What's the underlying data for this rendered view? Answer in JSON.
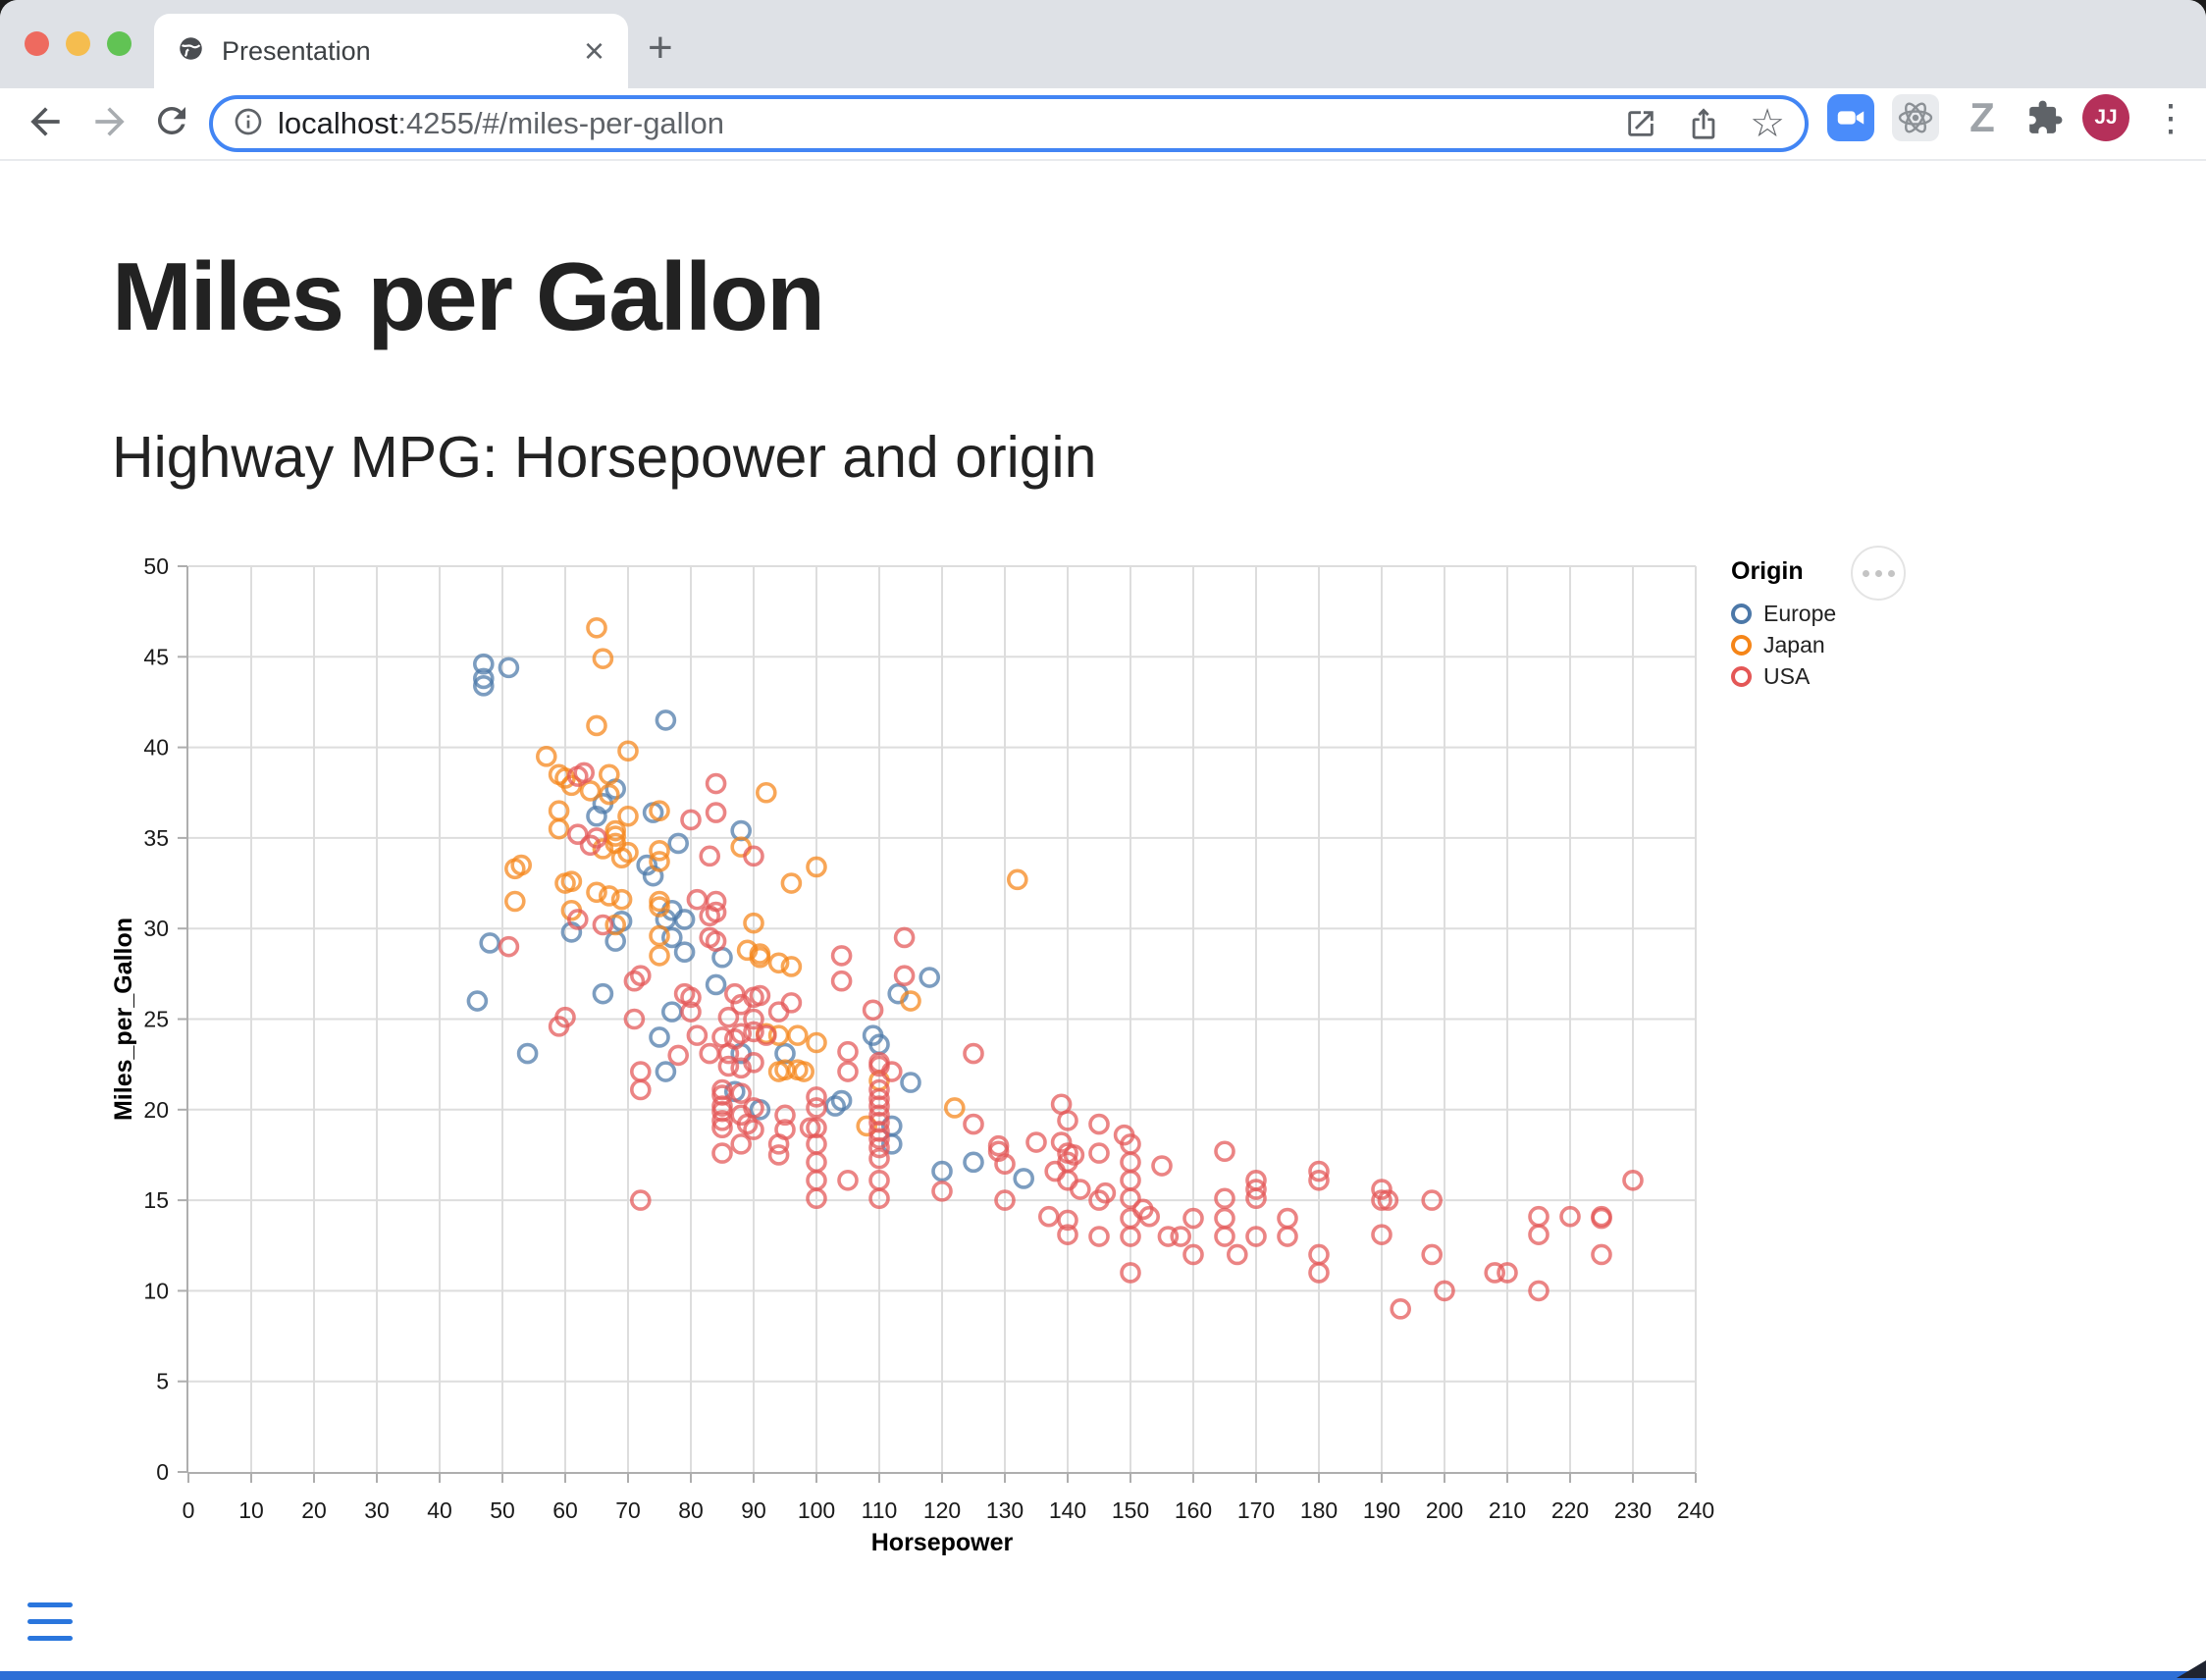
{
  "window": {
    "tab_title": "Presentation",
    "url": {
      "host": "localhost",
      "rest": ":4255/#/miles-per-gallon"
    },
    "avatar_initials": "JJ"
  },
  "icons": {
    "back": "back-arrow",
    "forward": "forward-arrow",
    "reload": "reload",
    "close_tab": "×",
    "new_tab": "+",
    "kebab": "⋮",
    "star": "☆",
    "extension_z": "Z"
  },
  "page": {
    "title": "Miles per Gallon",
    "subtitle": "Highway MPG: Horsepower and origin"
  },
  "chart_data": {
    "type": "scatter",
    "xlabel": "Horsepower",
    "ylabel": "Miles_per_Gallon",
    "xlim": [
      0,
      240
    ],
    "ylim": [
      0,
      50
    ],
    "x_ticks": [
      0,
      10,
      20,
      30,
      40,
      50,
      60,
      70,
      80,
      90,
      100,
      110,
      120,
      130,
      140,
      150,
      160,
      170,
      180,
      190,
      200,
      210,
      220,
      230,
      240
    ],
    "y_ticks": [
      0,
      5,
      10,
      15,
      20,
      25,
      30,
      35,
      40,
      45,
      50
    ],
    "grid": true,
    "point_shape": "open-circle",
    "legend": {
      "title": "Origin",
      "position": "right"
    },
    "series": [
      {
        "name": "Europe",
        "color": "#4c78a8",
        "points": [
          [
            47,
            44.6
          ],
          [
            51,
            44.4
          ],
          [
            47,
            43.8
          ],
          [
            47,
            43.4
          ],
          [
            76,
            41.5
          ],
          [
            68,
            37.7
          ],
          [
            66,
            36.9
          ],
          [
            74,
            36.4
          ],
          [
            65,
            36.2
          ],
          [
            88,
            35.4
          ],
          [
            78,
            34.7
          ],
          [
            73,
            33.5
          ],
          [
            74,
            32.9
          ],
          [
            77,
            31.0
          ],
          [
            76,
            30.5
          ],
          [
            79,
            30.5
          ],
          [
            69,
            30.4
          ],
          [
            61,
            29.8
          ],
          [
            77,
            29.5
          ],
          [
            68,
            29.3
          ],
          [
            48,
            29.2
          ],
          [
            79,
            28.7
          ],
          [
            85,
            28.4
          ],
          [
            118,
            27.3
          ],
          [
            84,
            26.9
          ],
          [
            66,
            26.4
          ],
          [
            113,
            26.4
          ],
          [
            46,
            26.0
          ],
          [
            77,
            25.4
          ],
          [
            109,
            24.1
          ],
          [
            75,
            24.0
          ],
          [
            110,
            23.6
          ],
          [
            54,
            23.1
          ],
          [
            88,
            23.1
          ],
          [
            95,
            23.1
          ],
          [
            76,
            22.1
          ],
          [
            115,
            21.5
          ],
          [
            87,
            21.0
          ],
          [
            104,
            20.5
          ],
          [
            103,
            20.2
          ],
          [
            91,
            20.0
          ],
          [
            112,
            19.1
          ],
          [
            112,
            18.1
          ],
          [
            125,
            17.1
          ],
          [
            120,
            16.6
          ],
          [
            133,
            16.2
          ]
        ]
      },
      {
        "name": "Japan",
        "color": "#f58518",
        "points": [
          [
            65,
            46.6
          ],
          [
            66,
            44.9
          ],
          [
            65,
            41.2
          ],
          [
            70,
            39.8
          ],
          [
            57,
            39.5
          ],
          [
            67,
            38.5
          ],
          [
            59,
            38.5
          ],
          [
            60,
            38.3
          ],
          [
            61,
            37.9
          ],
          [
            64,
            37.6
          ],
          [
            92,
            37.5
          ],
          [
            67,
            37.4
          ],
          [
            59,
            36.5
          ],
          [
            75,
            36.5
          ],
          [
            70,
            36.2
          ],
          [
            59,
            35.5
          ],
          [
            68,
            35.4
          ],
          [
            68,
            35.1
          ],
          [
            68,
            34.7
          ],
          [
            88,
            34.5
          ],
          [
            66,
            34.4
          ],
          [
            75,
            34.3
          ],
          [
            70,
            34.2
          ],
          [
            69,
            33.9
          ],
          [
            75,
            33.7
          ],
          [
            53,
            33.5
          ],
          [
            100,
            33.4
          ],
          [
            52,
            33.3
          ],
          [
            132,
            32.7
          ],
          [
            61,
            32.6
          ],
          [
            60,
            32.5
          ],
          [
            96,
            32.5
          ],
          [
            65,
            32.0
          ],
          [
            67,
            31.8
          ],
          [
            69,
            31.6
          ],
          [
            52,
            31.5
          ],
          [
            75,
            31.5
          ],
          [
            75,
            31.2
          ],
          [
            61,
            31.0
          ],
          [
            90,
            30.3
          ],
          [
            68,
            30.2
          ],
          [
            75,
            29.6
          ],
          [
            89,
            28.8
          ],
          [
            91,
            28.6
          ],
          [
            75,
            28.5
          ],
          [
            91,
            28.4
          ],
          [
            94,
            28.1
          ],
          [
            96,
            27.9
          ],
          [
            115,
            26.0
          ],
          [
            92,
            24.2
          ],
          [
            94,
            24.1
          ],
          [
            97,
            24.1
          ],
          [
            100,
            23.7
          ],
          [
            95,
            22.2
          ],
          [
            97,
            22.2
          ],
          [
            94,
            22.1
          ],
          [
            98,
            22.1
          ],
          [
            110,
            21.6
          ],
          [
            122,
            20.1
          ],
          [
            108,
            19.1
          ]
        ]
      },
      {
        "name": "USA",
        "color": "#e45756",
        "points": [
          [
            63,
            38.6
          ],
          [
            62,
            38.4
          ],
          [
            84,
            38.0
          ],
          [
            84,
            36.4
          ],
          [
            80,
            36.0
          ],
          [
            62,
            35.2
          ],
          [
            65,
            35.0
          ],
          [
            64,
            34.6
          ],
          [
            83,
            34.0
          ],
          [
            90,
            34.0
          ],
          [
            81,
            31.6
          ],
          [
            84,
            31.5
          ],
          [
            84,
            30.9
          ],
          [
            83,
            30.7
          ],
          [
            62,
            30.5
          ],
          [
            66,
            30.2
          ],
          [
            83,
            29.5
          ],
          [
            114,
            29.5
          ],
          [
            84,
            29.3
          ],
          [
            51,
            29.0
          ],
          [
            104,
            28.5
          ],
          [
            114,
            27.4
          ],
          [
            72,
            27.4
          ],
          [
            104,
            27.1
          ],
          [
            71,
            27.1
          ],
          [
            79,
            26.4
          ],
          [
            87,
            26.4
          ],
          [
            91,
            26.3
          ],
          [
            80,
            26.2
          ],
          [
            90,
            26.2
          ],
          [
            96,
            25.9
          ],
          [
            88,
            25.8
          ],
          [
            109,
            25.5
          ],
          [
            80,
            25.4
          ],
          [
            94,
            25.4
          ],
          [
            60,
            25.1
          ],
          [
            86,
            25.1
          ],
          [
            71,
            25.0
          ],
          [
            90,
            25.0
          ],
          [
            59,
            24.6
          ],
          [
            90,
            24.3
          ],
          [
            88,
            24.2
          ],
          [
            81,
            24.1
          ],
          [
            92,
            24.1
          ],
          [
            85,
            24.0
          ],
          [
            87,
            23.9
          ],
          [
            105,
            23.2
          ],
          [
            78,
            23.0
          ],
          [
            83,
            23.1
          ],
          [
            86,
            23.1
          ],
          [
            125,
            23.1
          ],
          [
            90,
            22.6
          ],
          [
            110,
            22.6
          ],
          [
            86,
            22.4
          ],
          [
            110,
            22.4
          ],
          [
            88,
            22.3
          ],
          [
            72,
            22.1
          ],
          [
            105,
            22.1
          ],
          [
            112,
            22.1
          ],
          [
            72,
            21.1
          ],
          [
            85,
            21.1
          ],
          [
            110,
            21.1
          ],
          [
            88,
            20.9
          ],
          [
            85,
            20.8
          ],
          [
            100,
            20.7
          ],
          [
            110,
            20.6
          ],
          [
            139,
            20.3
          ],
          [
            85,
            20.2
          ],
          [
            110,
            20.2
          ],
          [
            100,
            20.1
          ],
          [
            90,
            20.1
          ],
          [
            85,
            19.9
          ],
          [
            88,
            19.7
          ],
          [
            95,
            19.7
          ],
          [
            110,
            19.7
          ],
          [
            85,
            19.4
          ],
          [
            140,
            19.4
          ],
          [
            110,
            19.3
          ],
          [
            89,
            19.2
          ],
          [
            125,
            19.2
          ],
          [
            145,
            19.2
          ],
          [
            85,
            19.0
          ],
          [
            99,
            19.0
          ],
          [
            100,
            19.0
          ],
          [
            90,
            18.9
          ],
          [
            95,
            18.9
          ],
          [
            110,
            18.8
          ],
          [
            149,
            18.6
          ],
          [
            110,
            18.4
          ],
          [
            135,
            18.2
          ],
          [
            139,
            18.2
          ],
          [
            88,
            18.1
          ],
          [
            94,
            18.1
          ],
          [
            100,
            18.1
          ],
          [
            150,
            18.1
          ],
          [
            129,
            18.0
          ],
          [
            110,
            17.9
          ],
          [
            129,
            17.7
          ],
          [
            165,
            17.7
          ],
          [
            85,
            17.6
          ],
          [
            140,
            17.6
          ],
          [
            145,
            17.6
          ],
          [
            94,
            17.5
          ],
          [
            141,
            17.5
          ],
          [
            110,
            17.3
          ],
          [
            100,
            17.1
          ],
          [
            140,
            17.1
          ],
          [
            150,
            17.1
          ],
          [
            130,
            17.0
          ],
          [
            155,
            16.9
          ],
          [
            138,
            16.6
          ],
          [
            180,
            16.6
          ],
          [
            100,
            16.1
          ],
          [
            105,
            16.1
          ],
          [
            110,
            16.1
          ],
          [
            140,
            16.1
          ],
          [
            150,
            16.1
          ],
          [
            170,
            16.1
          ],
          [
            180,
            16.1
          ],
          [
            230,
            16.1
          ],
          [
            142,
            15.6
          ],
          [
            170,
            15.6
          ],
          [
            190,
            15.6
          ],
          [
            120,
            15.5
          ],
          [
            146,
            15.4
          ],
          [
            100,
            15.1
          ],
          [
            110,
            15.1
          ],
          [
            150,
            15.1
          ],
          [
            165,
            15.1
          ],
          [
            170,
            15.1
          ],
          [
            72,
            15.0
          ],
          [
            130,
            15.0
          ],
          [
            145,
            15.0
          ],
          [
            190,
            15.0
          ],
          [
            191,
            15.0
          ],
          [
            198,
            15.0
          ],
          [
            152,
            14.5
          ],
          [
            137,
            14.1
          ],
          [
            153,
            14.1
          ],
          [
            215,
            14.1
          ],
          [
            220,
            14.1
          ],
          [
            225,
            14.1
          ],
          [
            150,
            14.0
          ],
          [
            160,
            14.0
          ],
          [
            165,
            14.0
          ],
          [
            175,
            14.0
          ],
          [
            225,
            14.0
          ],
          [
            140,
            13.9
          ],
          [
            140,
            13.1
          ],
          [
            190,
            13.1
          ],
          [
            215,
            13.1
          ],
          [
            145,
            13.0
          ],
          [
            150,
            13.0
          ],
          [
            156,
            13.0
          ],
          [
            158,
            13.0
          ],
          [
            165,
            13.0
          ],
          [
            170,
            13.0
          ],
          [
            175,
            13.0
          ],
          [
            160,
            12.0
          ],
          [
            167,
            12.0
          ],
          [
            180,
            12.0
          ],
          [
            198,
            12.0
          ],
          [
            225,
            12.0
          ],
          [
            150,
            11.0
          ],
          [
            180,
            11.0
          ],
          [
            208,
            11.0
          ],
          [
            210,
            11.0
          ],
          [
            200,
            10.0
          ],
          [
            215,
            10.0
          ],
          [
            193,
            9.0
          ]
        ]
      }
    ]
  },
  "colors": {
    "accent_blue": "#2a76dd",
    "omnibox_focus": "#4285f4",
    "europe": "#4c78a8",
    "japan": "#f58518",
    "usa": "#e45756"
  }
}
